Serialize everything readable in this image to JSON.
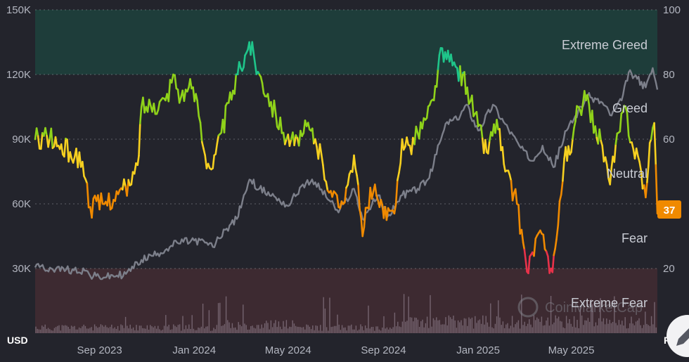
{
  "chart_data": {
    "type": "line",
    "title": "",
    "x_ticks": [
      "Sep 2023",
      "Jan 2024",
      "May 2024",
      "Sep 2024",
      "Jan 2025",
      "May 2025"
    ],
    "x_range": [
      "2023-06-10",
      "2025-08-20"
    ],
    "left_axis": {
      "unit": "USD",
      "ticks": [
        30000,
        60000,
        90000,
        120000,
        150000
      ],
      "tick_labels": [
        "30K",
        "60K",
        "90K",
        "120K",
        "150K"
      ],
      "range": [
        0,
        150000
      ]
    },
    "right_axis": {
      "unit": "F&G",
      "ticks": [
        20,
        40,
        60,
        80,
        100
      ],
      "tick_labels": [
        "20",
        "40",
        "60",
        "80",
        "100"
      ],
      "range": [
        0,
        100
      ]
    },
    "zones": [
      {
        "label": "Extreme Greed",
        "from": 80,
        "to": 100,
        "color": "#1e3d3a"
      },
      {
        "label": "Greed",
        "from": 60,
        "to": 80
      },
      {
        "label": "Neutral",
        "from": 40,
        "to": 60
      },
      {
        "label": "Fear",
        "from": 20,
        "to": 40
      },
      {
        "label": "Extreme Fear",
        "from": 0,
        "to": 20,
        "color": "#3d2a31"
      }
    ],
    "grid": "dashed horizontal",
    "current_value": {
      "label": "37",
      "value": 37,
      "color": "#f08a00"
    },
    "series": [
      {
        "type": "line",
        "axis": "right",
        "color_scale": [
          [
            0,
            "#e8324a"
          ],
          [
            25,
            "#f08a00"
          ],
          [
            45,
            "#f6d020"
          ],
          [
            60,
            "#8fd21a"
          ],
          [
            80,
            "#1fc58a"
          ]
        ],
        "points": [
          [
            "2023-06-10",
            60
          ],
          [
            "2023-06-25",
            61
          ],
          [
            "2023-07-10",
            58
          ],
          [
            "2023-07-25",
            56
          ],
          [
            "2023-08-10",
            53
          ],
          [
            "2023-08-20",
            39
          ],
          [
            "2023-09-05",
            40
          ],
          [
            "2023-09-25",
            43
          ],
          [
            "2023-10-12",
            46
          ],
          [
            "2023-10-20",
            52
          ],
          [
            "2023-10-25",
            70
          ],
          [
            "2023-11-10",
            71
          ],
          [
            "2023-11-25",
            72
          ],
          [
            "2023-12-05",
            80
          ],
          [
            "2023-12-15",
            73
          ],
          [
            "2023-12-25",
            76
          ],
          [
            "2024-01-05",
            72
          ],
          [
            "2024-01-15",
            55
          ],
          [
            "2024-01-25",
            51
          ],
          [
            "2024-02-05",
            62
          ],
          [
            "2024-02-20",
            75
          ],
          [
            "2024-03-01",
            82
          ],
          [
            "2024-03-12",
            90
          ],
          [
            "2024-03-25",
            80
          ],
          [
            "2024-04-05",
            74
          ],
          [
            "2024-04-15",
            68
          ],
          [
            "2024-04-25",
            62
          ],
          [
            "2024-05-05",
            60
          ],
          [
            "2024-05-15",
            58
          ],
          [
            "2024-05-25",
            64
          ],
          [
            "2024-06-05",
            60
          ],
          [
            "2024-06-15",
            52
          ],
          [
            "2024-06-25",
            44
          ],
          [
            "2024-07-05",
            39
          ],
          [
            "2024-07-15",
            45
          ],
          [
            "2024-07-25",
            55
          ],
          [
            "2024-08-05",
            30
          ],
          [
            "2024-08-15",
            45
          ],
          [
            "2024-08-25",
            41
          ],
          [
            "2024-09-05",
            35
          ],
          [
            "2024-09-15",
            37
          ],
          [
            "2024-09-25",
            60
          ],
          [
            "2024-10-05",
            58
          ],
          [
            "2024-10-15",
            62
          ],
          [
            "2024-10-25",
            66
          ],
          [
            "2024-11-05",
            72
          ],
          [
            "2024-11-12",
            86
          ],
          [
            "2024-11-25",
            84
          ],
          [
            "2024-12-05",
            82
          ],
          [
            "2024-12-18",
            76
          ],
          [
            "2025-01-01",
            64
          ],
          [
            "2025-01-12",
            56
          ],
          [
            "2025-01-25",
            66
          ],
          [
            "2025-02-05",
            50
          ],
          [
            "2025-02-20",
            40
          ],
          [
            "2025-02-28",
            28
          ],
          [
            "2025-03-05",
            19
          ],
          [
            "2025-03-12",
            25
          ],
          [
            "2025-03-20",
            31
          ],
          [
            "2025-03-28",
            26
          ],
          [
            "2025-04-05",
            20
          ],
          [
            "2025-04-12",
            29
          ],
          [
            "2025-04-22",
            54
          ],
          [
            "2025-05-01",
            56
          ],
          [
            "2025-05-10",
            70
          ],
          [
            "2025-05-20",
            72
          ],
          [
            "2025-06-01",
            64
          ],
          [
            "2025-06-10",
            58
          ],
          [
            "2025-06-20",
            46
          ],
          [
            "2025-07-01",
            62
          ],
          [
            "2025-07-10",
            70
          ],
          [
            "2025-07-18",
            59
          ],
          [
            "2025-07-28",
            53
          ],
          [
            "2025-08-05",
            42
          ],
          [
            "2025-08-12",
            60
          ],
          [
            "2025-08-16",
            65
          ],
          [
            "2025-08-20",
            37
          ]
        ]
      },
      {
        "type": "line",
        "axis": "left",
        "color": "#7c7f8a",
        "points": [
          [
            "2023-06-10",
            30500
          ],
          [
            "2023-07-01",
            30000
          ],
          [
            "2023-07-20",
            29500
          ],
          [
            "2023-08-15",
            29000
          ],
          [
            "2023-08-20",
            26500
          ],
          [
            "2023-09-10",
            26000
          ],
          [
            "2023-10-05",
            27500
          ],
          [
            "2023-10-25",
            34000
          ],
          [
            "2023-11-15",
            37000
          ],
          [
            "2023-12-10",
            42000
          ],
          [
            "2024-01-01",
            43000
          ],
          [
            "2024-01-15",
            42000
          ],
          [
            "2024-01-25",
            40000
          ],
          [
            "2024-02-10",
            48000
          ],
          [
            "2024-02-25",
            53000
          ],
          [
            "2024-03-05",
            64000
          ],
          [
            "2024-03-14",
            71000
          ],
          [
            "2024-03-25",
            67000
          ],
          [
            "2024-04-15",
            63000
          ],
          [
            "2024-05-01",
            59000
          ],
          [
            "2024-05-20",
            69000
          ],
          [
            "2024-06-05",
            70000
          ],
          [
            "2024-06-25",
            61000
          ],
          [
            "2024-07-05",
            56000
          ],
          [
            "2024-07-25",
            67000
          ],
          [
            "2024-08-05",
            53000
          ],
          [
            "2024-08-25",
            64000
          ],
          [
            "2024-09-06",
            54000
          ],
          [
            "2024-09-25",
            64000
          ],
          [
            "2024-10-15",
            67000
          ],
          [
            "2024-10-30",
            72000
          ],
          [
            "2024-11-12",
            88000
          ],
          [
            "2024-11-22",
            98000
          ],
          [
            "2024-12-05",
            99000
          ],
          [
            "2024-12-17",
            106000
          ],
          [
            "2025-01-01",
            94000
          ],
          [
            "2025-01-20",
            106000
          ],
          [
            "2025-02-05",
            97000
          ],
          [
            "2025-02-25",
            86000
          ],
          [
            "2025-03-10",
            80000
          ],
          [
            "2025-03-25",
            87000
          ],
          [
            "2025-04-08",
            77000
          ],
          [
            "2025-04-25",
            94000
          ],
          [
            "2025-05-10",
            103000
          ],
          [
            "2025-05-22",
            110000
          ],
          [
            "2025-06-10",
            107000
          ],
          [
            "2025-06-22",
            101000
          ],
          [
            "2025-07-05",
            108000
          ],
          [
            "2025-07-14",
            121000
          ],
          [
            "2025-07-25",
            118000
          ],
          [
            "2025-08-05",
            114000
          ],
          [
            "2025-08-14",
            123000
          ],
          [
            "2025-08-20",
            113000
          ]
        ]
      }
    ]
  },
  "watermark": "CoinMarketCap"
}
